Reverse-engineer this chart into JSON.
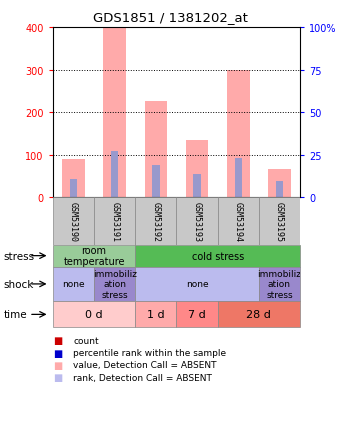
{
  "title": "GDS1851 / 1381202_at",
  "samples": [
    "GSM53190",
    "GSM53191",
    "GSM53192",
    "GSM53193",
    "GSM53194",
    "GSM53195"
  ],
  "bar_values_pink": [
    90,
    400,
    225,
    135,
    300,
    65
  ],
  "bar_values_blue": [
    42,
    108,
    75,
    55,
    92,
    38
  ],
  "ylim": [
    0,
    400
  ],
  "yticks_left": [
    0,
    100,
    200,
    300,
    400
  ],
  "yticks_right": [
    0,
    25,
    50,
    75,
    100
  ],
  "colors": {
    "pink_bar": "#FFAAAA",
    "blue_bar": "#9999CC",
    "stress_room": "#99CC99",
    "stress_cold": "#55BB55",
    "shock_none": "#BBBBEE",
    "shock_immob": "#9988CC",
    "time_0d": "#FFCCCC",
    "time_1d": "#FFAAAA",
    "time_7d": "#FF8888",
    "time_28d": "#EE7766",
    "sample_bg": "#C8C8C8"
  },
  "stress_labels": [
    [
      "room\ntemperature",
      0,
      2
    ],
    [
      "cold stress",
      2,
      6
    ]
  ],
  "shock_labels": [
    [
      "none",
      0,
      1
    ],
    [
      "immobiliz\nation\nstress",
      1,
      2
    ],
    [
      "none",
      2,
      5
    ],
    [
      "immobiliz\nation\nstress",
      5,
      6
    ]
  ],
  "time_labels": [
    [
      "0 d",
      0,
      2
    ],
    [
      "1 d",
      2,
      3
    ],
    [
      "7 d",
      3,
      4
    ],
    [
      "28 d",
      4,
      6
    ]
  ],
  "legend_items": [
    {
      "color": "#CC0000",
      "label": "count"
    },
    {
      "color": "#0000CC",
      "label": "percentile rank within the sample"
    },
    {
      "color": "#FFAAAA",
      "label": "value, Detection Call = ABSENT"
    },
    {
      "color": "#BBBBEE",
      "label": "rank, Detection Call = ABSENT"
    }
  ]
}
